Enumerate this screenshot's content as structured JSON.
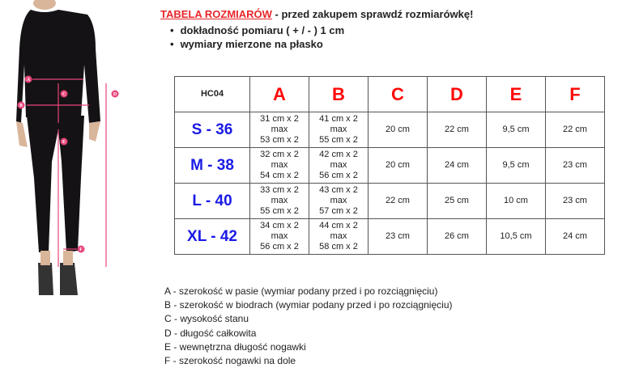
{
  "header": {
    "title": "TABELA ROZMIARÓW",
    "subtitle": " - przed zakupem sprawdź rozmiarówkę!",
    "bullets": [
      "dokładność pomiaru ( + / - ) 1 cm",
      "wymiary mierzone na płasko"
    ]
  },
  "figure": {
    "markers": [
      "A",
      "B",
      "C",
      "D",
      "E",
      "F"
    ],
    "accent": "#e8457a"
  },
  "table": {
    "code": "HC04",
    "columns": [
      "A",
      "B",
      "C",
      "D",
      "E",
      "F"
    ],
    "rows": [
      {
        "size": "S - 36",
        "A": [
          "31 cm x 2",
          "max",
          "53 cm x 2"
        ],
        "B": [
          "41 cm x 2",
          "max",
          "55 cm x 2"
        ],
        "C": "20 cm",
        "D": "22 cm",
        "E": "9,5 cm",
        "F": "22 cm"
      },
      {
        "size": "M - 38",
        "A": [
          "32 cm x 2",
          "max",
          "54 cm x 2"
        ],
        "B": [
          "42 cm x 2",
          "max",
          "56 cm x 2"
        ],
        "C": "20 cm",
        "D": "24 cm",
        "E": "9,5 cm",
        "F": "23 cm"
      },
      {
        "size": "L - 40",
        "A": [
          "33 cm x 2",
          "max",
          "55 cm x 2"
        ],
        "B": [
          "43 cm x 2",
          "max",
          "57 cm x 2"
        ],
        "C": "22 cm",
        "D": "25 cm",
        "E": "10 cm",
        "F": "23 cm"
      },
      {
        "size": "XL - 42",
        "A": [
          "34 cm x 2",
          "max",
          "56 cm x 2"
        ],
        "B": [
          "44 cm x 2",
          "max",
          "58 cm x 2"
        ],
        "C": "23 cm",
        "D": "26 cm",
        "E": "10,5 cm",
        "F": "24 cm"
      }
    ],
    "colors": {
      "letter": "#ff0a0a",
      "size": "#1a1ae6"
    }
  },
  "legend": [
    "A - szerokość w pasie (wymiar podany przed i po rozciągnięciu)",
    "B - szerokość w biodrach (wymiar podany przed i po rozciągnięciu)",
    "C - wysokość stanu",
    "D - długość całkowita",
    "E - wewnętrzna długość nogawki",
    "F - szerokość nogawki na dole"
  ]
}
